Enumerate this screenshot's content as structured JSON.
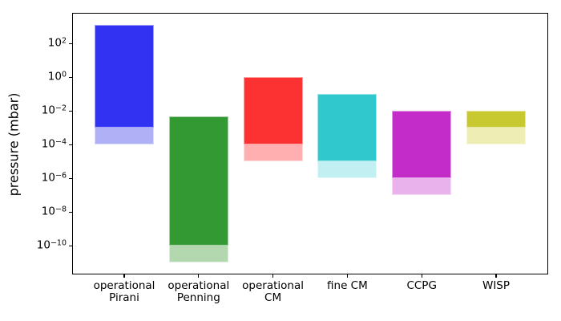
{
  "figure": {
    "background": "#ffffff",
    "spine_color": "#000000",
    "tick_color": "#000000",
    "text_color": "#000000"
  },
  "chart_data": {
    "type": "bar",
    "title": "",
    "xlabel": "",
    "ylabel": "pressure (mbar)",
    "yscale": "log",
    "unit": "mbar",
    "grid": false,
    "legend_position": "none",
    "ylim": [
      2e-12,
      6600.0
    ],
    "ytick_exponents": [
      2,
      0,
      -2,
      -4,
      -6,
      -8,
      -10
    ],
    "categories": [
      "operational Pirani",
      "operational Penning",
      "operational CM",
      "fine CM",
      "CCPG",
      "WISP"
    ],
    "bars": [
      {
        "category": "operational Pirani",
        "label_lines": [
          "operational",
          "Pirani"
        ],
        "full_range_mbar": [
          0.0001,
          1300.0
        ],
        "operational_range_mbar": [
          0.001,
          1300.0
        ],
        "color_dark": "#3232f2",
        "color_light": "#b0b0f7"
      },
      {
        "category": "operational Penning",
        "label_lines": [
          "operational",
          "Penning"
        ],
        "full_range_mbar": [
          1e-11,
          0.005
        ],
        "operational_range_mbar": [
          1e-10,
          0.005
        ],
        "color_dark": "#339a33",
        "color_light": "#b3d8b0"
      },
      {
        "category": "operational CM",
        "label_lines": [
          "operational",
          "CM"
        ],
        "full_range_mbar": [
          1e-05,
          1.0
        ],
        "operational_range_mbar": [
          0.0001,
          1.0
        ],
        "color_dark": "#fc3232",
        "color_light": "#ffafaf"
      },
      {
        "category": "fine CM",
        "label_lines": [
          "fine CM"
        ],
        "full_range_mbar": [
          1e-06,
          0.1
        ],
        "operational_range_mbar": [
          1e-05,
          0.1
        ],
        "color_dark": "#30c8cd",
        "color_light": "#c2eff1"
      },
      {
        "category": "CCPG",
        "label_lines": [
          "CCPG"
        ],
        "full_range_mbar": [
          1e-07,
          0.01
        ],
        "operational_range_mbar": [
          1e-06,
          0.01
        ],
        "color_dark": "#c42cc9",
        "color_light": "#e9b2ec"
      },
      {
        "category": "WISP",
        "label_lines": [
          "WISP"
        ],
        "full_range_mbar": [
          0.0001,
          0.01
        ],
        "operational_range_mbar": [
          0.001,
          0.01
        ],
        "color_dark": "#c8c831",
        "color_light": "#ededb4"
      }
    ]
  }
}
